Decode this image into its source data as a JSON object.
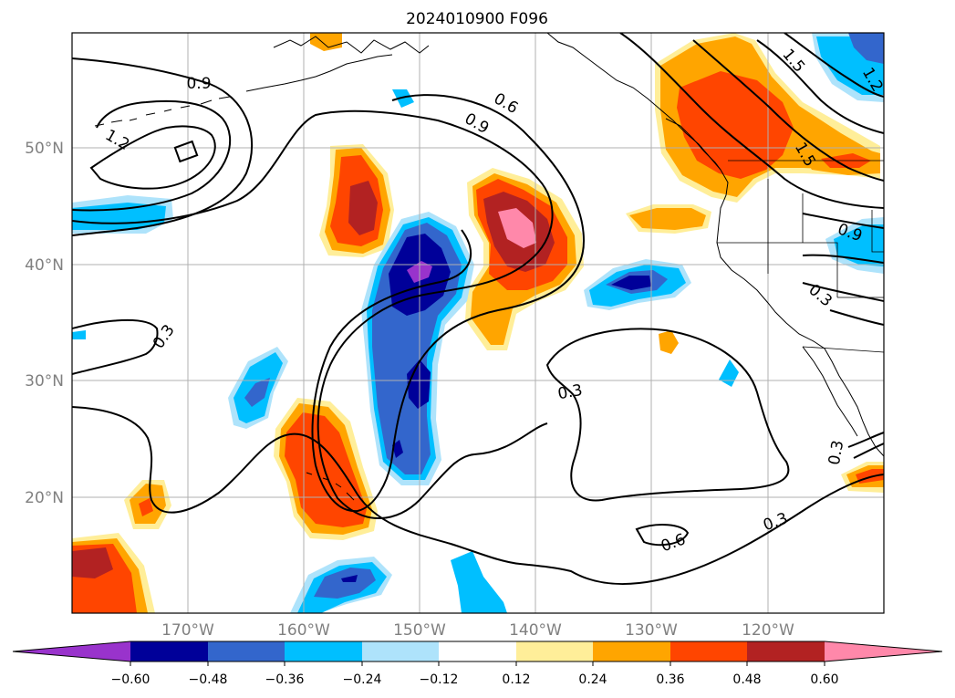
{
  "title": "2024010900 F096",
  "map": {
    "lon_ticks": [
      "170°W",
      "160°W",
      "150°W",
      "140°W",
      "130°W",
      "120°W"
    ],
    "lat_ticks": [
      "50°N",
      "40°N",
      "30°N",
      "20°N"
    ],
    "contour_labels": [
      "0.9",
      "1.2",
      "0.6",
      "0.9",
      "1.5",
      "1.2",
      "1.5",
      "0.9",
      "0.3",
      "0.3",
      "0.3",
      "0.3",
      "0.6",
      "0.3"
    ]
  },
  "colorbar": {
    "tick_labels": [
      "−0.60",
      "−0.48",
      "−0.36",
      "−0.24",
      "−0.12",
      "0.12",
      "0.24",
      "0.36",
      "0.48",
      "0.60"
    ],
    "colors": [
      "#9933cc",
      "#000099",
      "#3366cc",
      "#00bfff",
      "#aee3fb",
      "#ffffff",
      "#ffee99",
      "#ffa500",
      "#ff4500",
      "#b22222",
      "#ff88aa"
    ]
  }
}
